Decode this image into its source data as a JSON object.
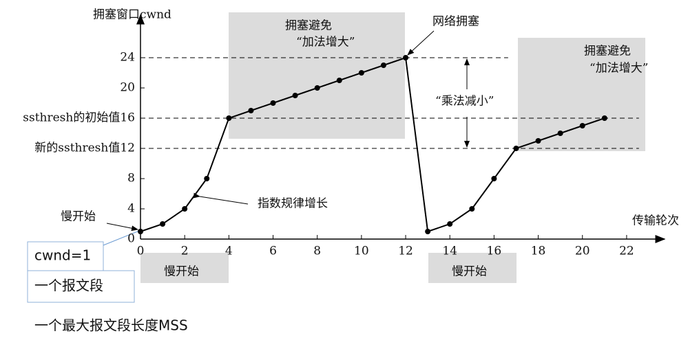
{
  "chart_data": {
    "type": "line",
    "y_label": "拥塞窗口cwnd",
    "x_label": "传输轮次",
    "x": [
      0,
      1,
      2,
      3,
      4,
      5,
      6,
      7,
      8,
      9,
      10,
      11,
      12,
      13,
      14,
      15,
      16,
      17,
      18,
      19,
      20,
      21
    ],
    "values": [
      1,
      2,
      4,
      8,
      16,
      17,
      18,
      19,
      20,
      21,
      22,
      23,
      24,
      1,
      2,
      4,
      8,
      12,
      13,
      14,
      15,
      16
    ],
    "color": "#000000",
    "xlim": [
      0,
      23
    ],
    "ylim": [
      0,
      28
    ],
    "xticks": [
      0,
      2,
      4,
      6,
      8,
      10,
      12,
      14,
      16,
      18,
      20,
      22
    ],
    "yticks": [
      0,
      4,
      8,
      {
        "value": 12,
        "label": "新的ssthresh值12"
      },
      {
        "value": 16,
        "label": "ssthresh的初始值16"
      },
      20,
      24
    ],
    "annotations": [
      "拥塞避免",
      "“加法增大”",
      "网络拥塞",
      "拥塞避免",
      "“加法增大”",
      "“乘法减小”",
      "指数规律增长",
      "慢开始",
      "慢开始",
      "慢开始",
      "cwnd=1",
      "一个报文段",
      "一个最大报文段长度MSS"
    ]
  }
}
